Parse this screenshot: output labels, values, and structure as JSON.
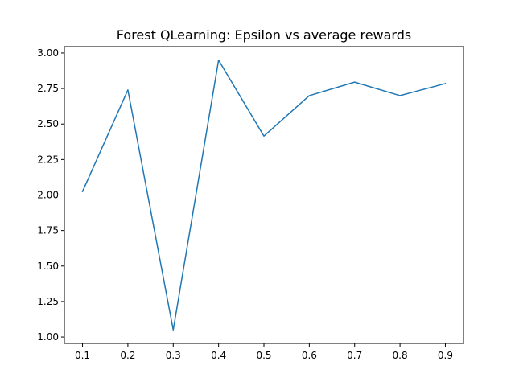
{
  "chart_data": {
    "type": "line",
    "title": "Forest QLearning: Epsilon vs average rewards",
    "xlabel": "",
    "ylabel": "",
    "x": [
      0.1,
      0.2,
      0.3,
      0.4,
      0.5,
      0.6,
      0.7,
      0.8,
      0.9
    ],
    "series": [
      {
        "values": [
          2.025,
          2.74,
          1.05,
          2.95,
          2.415,
          2.7,
          2.795,
          2.7,
          2.785
        ],
        "color": "#1f77b4"
      }
    ],
    "xlim": [
      0.06,
      0.94
    ],
    "ylim": [
      0.955,
      3.045
    ],
    "xticks": [
      "0.1",
      "0.2",
      "0.3",
      "0.4",
      "0.5",
      "0.6",
      "0.7",
      "0.8",
      "0.9"
    ],
    "yticks": [
      "1.00",
      "1.25",
      "1.50",
      "1.75",
      "2.00",
      "2.25",
      "2.50",
      "2.75",
      "3.00"
    ],
    "grid": false,
    "legend": "none"
  }
}
